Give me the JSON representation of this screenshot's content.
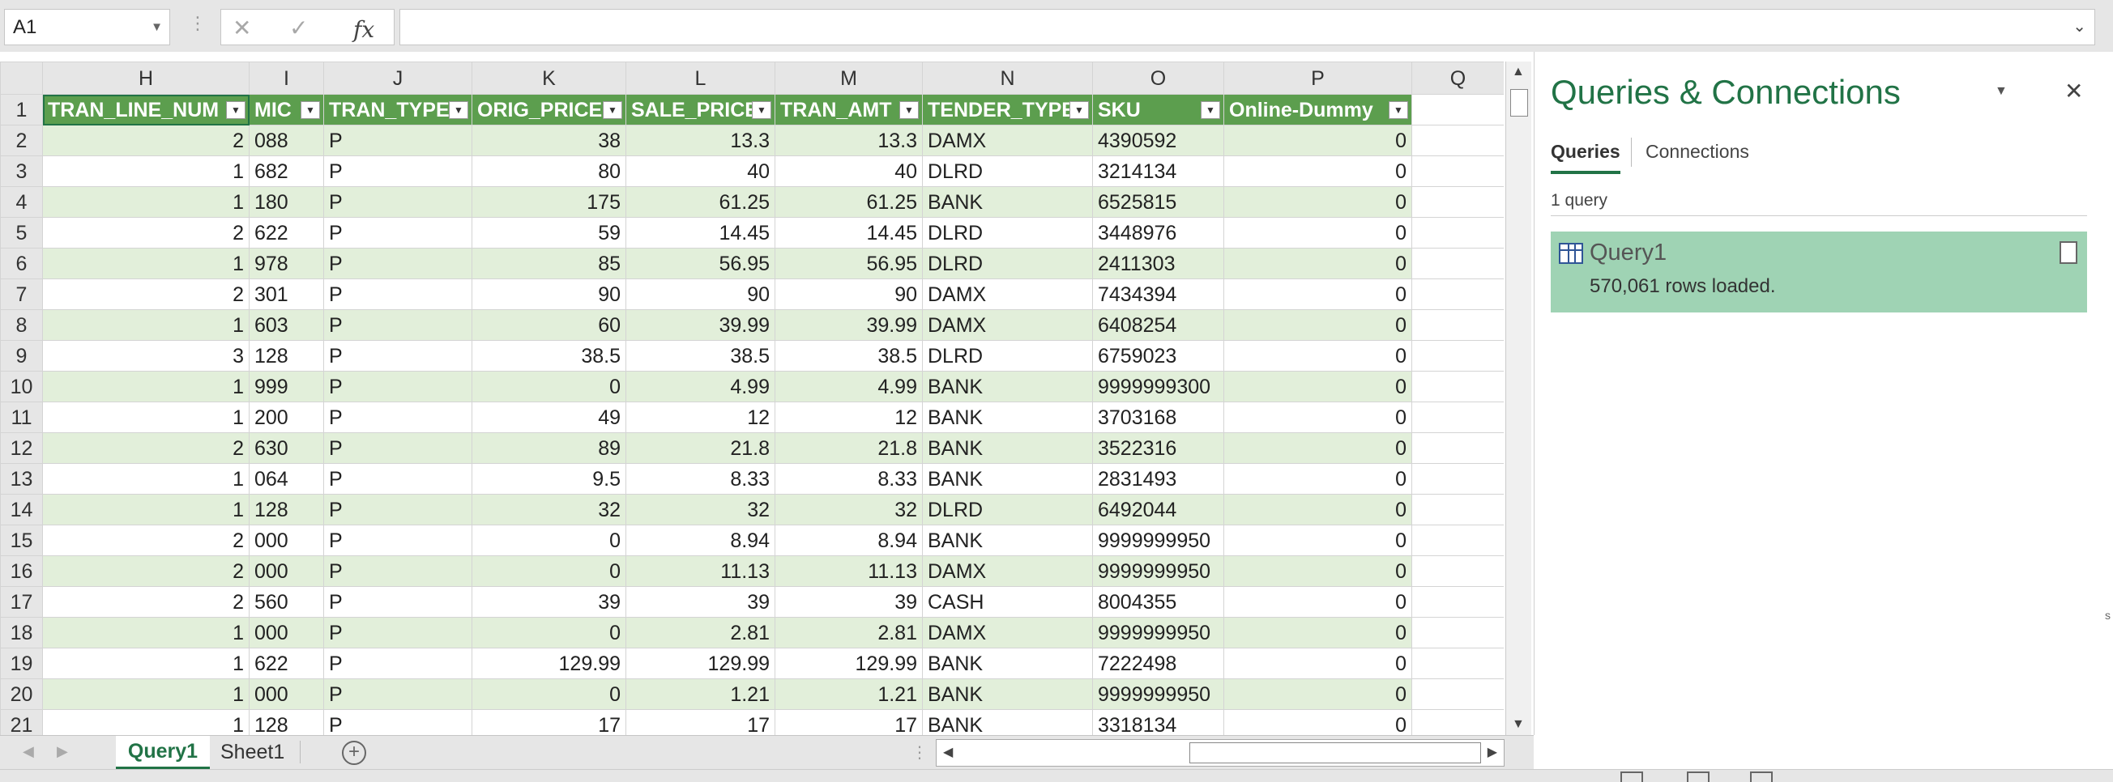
{
  "formula_bar": {
    "name_box": "A1",
    "cancel_glyph": "✕",
    "enter_glyph": "✓",
    "fx_label": "fx",
    "formula_value": ""
  },
  "columns": [
    "H",
    "I",
    "J",
    "K",
    "L",
    "M",
    "N",
    "O",
    "P",
    "Q"
  ],
  "headers": [
    "TRAN_LINE_NUM",
    "MIC",
    "TRAN_TYPE",
    "ORIG_PRICE",
    "SALE_PRICE",
    "TRAN_AMT",
    "TENDER_TYPE",
    "SKU",
    "Online-Dummy"
  ],
  "rows": [
    [
      "2",
      "088",
      "P",
      "38",
      "13.3",
      "13.3",
      "DAMX",
      "4390592",
      "0"
    ],
    [
      "1",
      "682",
      "P",
      "80",
      "40",
      "40",
      "DLRD",
      "3214134",
      "0"
    ],
    [
      "1",
      "180",
      "P",
      "175",
      "61.25",
      "61.25",
      "BANK",
      "6525815",
      "0"
    ],
    [
      "2",
      "622",
      "P",
      "59",
      "14.45",
      "14.45",
      "DLRD",
      "3448976",
      "0"
    ],
    [
      "1",
      "978",
      "P",
      "85",
      "56.95",
      "56.95",
      "DLRD",
      "2411303",
      "0"
    ],
    [
      "2",
      "301",
      "P",
      "90",
      "90",
      "90",
      "DAMX",
      "7434394",
      "0"
    ],
    [
      "1",
      "603",
      "P",
      "60",
      "39.99",
      "39.99",
      "DAMX",
      "6408254",
      "0"
    ],
    [
      "3",
      "128",
      "P",
      "38.5",
      "38.5",
      "38.5",
      "DLRD",
      "6759023",
      "0"
    ],
    [
      "1",
      "999",
      "P",
      "0",
      "4.99",
      "4.99",
      "BANK",
      "9999999300",
      "0"
    ],
    [
      "1",
      "200",
      "P",
      "49",
      "12",
      "12",
      "BANK",
      "3703168",
      "0"
    ],
    [
      "2",
      "630",
      "P",
      "89",
      "21.8",
      "21.8",
      "BANK",
      "3522316",
      "0"
    ],
    [
      "1",
      "064",
      "P",
      "9.5",
      "8.33",
      "8.33",
      "BANK",
      "2831493",
      "0"
    ],
    [
      "1",
      "128",
      "P",
      "32",
      "32",
      "32",
      "DLRD",
      "6492044",
      "0"
    ],
    [
      "2",
      "000",
      "P",
      "0",
      "8.94",
      "8.94",
      "BANK",
      "9999999950",
      "0"
    ],
    [
      "2",
      "000",
      "P",
      "0",
      "11.13",
      "11.13",
      "DAMX",
      "9999999950",
      "0"
    ],
    [
      "2",
      "560",
      "P",
      "39",
      "39",
      "39",
      "CASH",
      "8004355",
      "0"
    ],
    [
      "1",
      "000",
      "P",
      "0",
      "2.81",
      "2.81",
      "DAMX",
      "9999999950",
      "0"
    ],
    [
      "1",
      "622",
      "P",
      "129.99",
      "129.99",
      "129.99",
      "BANK",
      "7222498",
      "0"
    ],
    [
      "1",
      "000",
      "P",
      "0",
      "1.21",
      "1.21",
      "BANK",
      "9999999950",
      "0"
    ],
    [
      "1",
      "128",
      "P",
      "17",
      "17",
      "17",
      "BANK",
      "3318134",
      "0"
    ]
  ],
  "panel": {
    "title": "Queries & Connections",
    "menu_glyph": "▼",
    "close_glyph": "✕",
    "tabs": [
      "Queries",
      "Connections"
    ],
    "query_count": "1 query",
    "query": {
      "name": "Query1",
      "status": "570,061 rows loaded."
    }
  },
  "sheet_tabs": [
    "Query1",
    "Sheet1"
  ],
  "add_sheet_glyph": "+",
  "icons": {
    "name_box_dropdown": "chevron-down-icon",
    "table": "table-icon",
    "edit_query": "document-icon",
    "add_sheet": "plus-circle-icon"
  },
  "colors": {
    "header_green": "#5c9e4e",
    "band_green": "#e2efda",
    "accent": "#217346",
    "query_item_bg": "#9fd3b4"
  }
}
